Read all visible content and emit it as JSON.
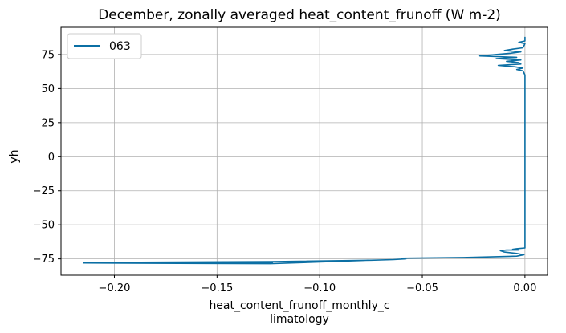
{
  "chart_data": {
    "type": "line",
    "title": "December, zonally averaged heat_content_frunoff (W m-2)",
    "xlabel_line1": "heat_content_frunoff_monthly_c",
    "xlabel_line2": "limatology",
    "ylabel": "yh",
    "xlim": [
      -0.226,
      0.011
    ],
    "ylim": [
      -87,
      95
    ],
    "xticks": [
      -0.2,
      -0.15,
      -0.1,
      -0.05,
      0.0
    ],
    "xtick_labels": [
      "−0.20",
      "−0.15",
      "−0.10",
      "−0.05",
      "0.00"
    ],
    "yticks": [
      -75,
      -50,
      -25,
      0,
      25,
      50,
      75
    ],
    "ytick_labels": [
      "−75",
      "−50",
      "−25",
      "0",
      "25",
      "50",
      "75"
    ],
    "grid": true,
    "legend_position": "top-left",
    "series": [
      {
        "name": "063",
        "color": "#0b6fa4",
        "x": [
          0.0,
          0.0,
          -0.003,
          0.0,
          -0.001,
          -0.006,
          -0.01,
          -0.002,
          -0.007,
          -0.022,
          -0.004,
          -0.014,
          -0.002,
          -0.009,
          -0.003,
          -0.002,
          -0.013,
          -0.005,
          -0.001,
          -0.004,
          -0.001,
          0.0,
          0.0,
          0.0,
          0.0,
          0.0,
          0.0,
          0.0,
          0.0,
          0.0,
          0.0,
          -0.004,
          -0.006,
          -0.003,
          -0.009,
          -0.012,
          -0.01,
          -0.004,
          -0.0005,
          -0.004,
          -0.03,
          -0.06,
          -0.058,
          -0.064,
          -0.075,
          -0.124,
          -0.198,
          -0.123,
          -0.199,
          -0.2,
          -0.215,
          -0.124,
          -0.076
        ],
        "y": [
          88,
          85,
          84,
          83,
          80,
          79,
          78,
          77,
          76,
          74,
          73,
          72,
          71,
          70,
          69,
          68,
          67,
          66,
          65,
          64,
          63,
          60,
          50,
          25,
          0,
          -25,
          -50,
          -60,
          -63,
          -65,
          -67,
          -67.5,
          -68,
          -68.5,
          -68.5,
          -69,
          -70,
          -71,
          -72,
          -73,
          -74,
          -74.5,
          -75,
          -75.5,
          -76,
          -77,
          -77.5,
          -78,
          -78,
          -77.5,
          -78,
          -78.5,
          -76
        ]
      }
    ]
  }
}
